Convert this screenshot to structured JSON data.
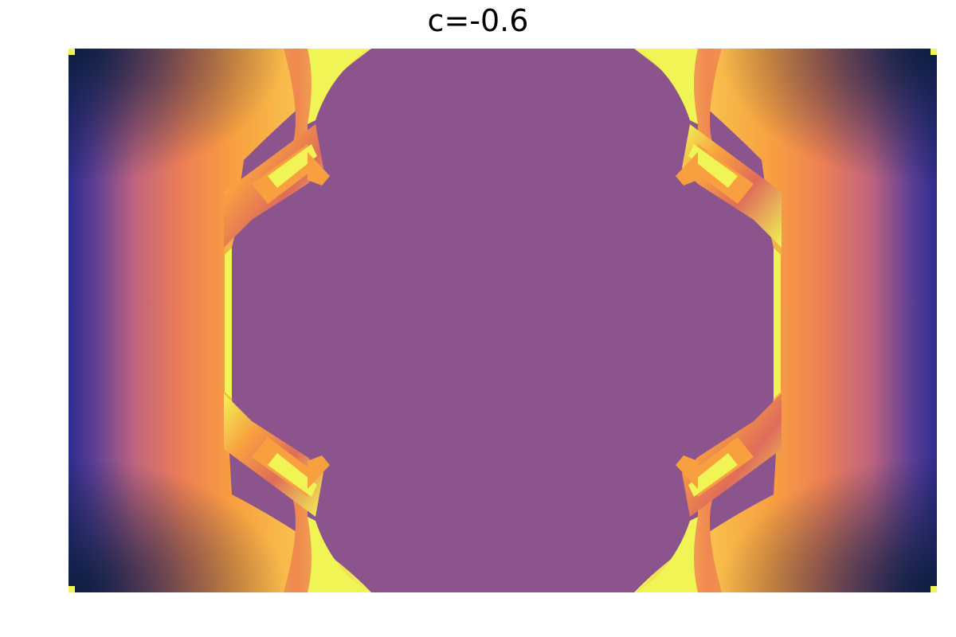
{
  "title": "c=-0.6",
  "colors": {
    "interior": "#8B548C",
    "edge_yellow": "#F0F455",
    "orange": "#F8A040",
    "pink": "#E06C74",
    "purple": "#7A4A94",
    "indigo": "#3E2E98",
    "dark": "#0C1E3E"
  }
}
